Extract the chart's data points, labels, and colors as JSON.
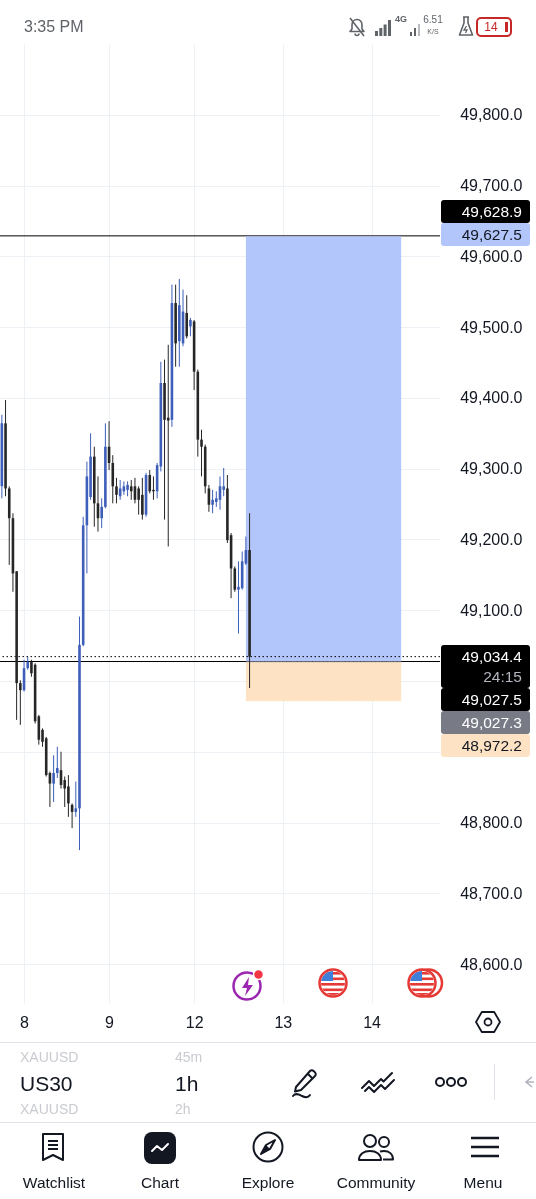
{
  "chart_data": {
    "type": "candlestick",
    "title": "US30",
    "subtitle": "1h",
    "categories": [
      null,
      null,
      null,
      null,
      null,
      null,
      "8",
      null,
      null,
      null,
      null,
      null,
      null,
      null,
      null,
      null,
      null,
      null,
      null,
      null,
      null,
      null,
      null,
      null,
      null,
      null,
      null,
      null,
      null,
      "9",
      null,
      null,
      null,
      null,
      null,
      null,
      null,
      null,
      null,
      null,
      null,
      null,
      null,
      null,
      null,
      null,
      null,
      null,
      null,
      null,
      null,
      null,
      "12",
      null,
      null,
      null,
      null,
      null,
      null,
      null,
      null,
      null,
      null,
      null,
      null,
      null,
      null,
      null,
      null,
      null,
      null,
      null,
      null,
      null,
      null,
      null,
      "13",
      null,
      null,
      null,
      null,
      null,
      null,
      null,
      null,
      null,
      null,
      null,
      null,
      null,
      null,
      null,
      null,
      null,
      null,
      null,
      null,
      null,
      null,
      null,
      "14",
      null,
      null,
      null,
      null,
      null,
      null,
      null,
      null,
      null,
      null,
      null,
      null,
      null,
      null,
      null,
      null,
      null,
      null
    ],
    "ohlc": [
      [
        49275,
        49376,
        49258,
        49364
      ],
      [
        49364,
        49397,
        49261,
        49272
      ],
      [
        49272,
        49275,
        49164,
        49230
      ],
      [
        49230,
        49237,
        49126,
        49152
      ],
      [
        49155,
        49155,
        48945,
        48997
      ],
      [
        48997,
        49001,
        48938,
        48987
      ],
      [
        48987,
        49030,
        48985,
        49018
      ],
      [
        49018,
        49034,
        49016,
        49027
      ],
      [
        49027,
        49030,
        49006,
        49011
      ],
      [
        49023,
        49025,
        48940,
        48943
      ],
      [
        48950,
        48952,
        48910,
        48917
      ],
      [
        48931,
        48933,
        48907,
        48914
      ],
      [
        48919,
        48921,
        48865,
        48867
      ],
      [
        48870,
        48872,
        48822,
        48855
      ],
      [
        48855,
        48895,
        48829,
        48870
      ],
      [
        48870,
        48907,
        48863,
        48877
      ],
      [
        48874,
        48900,
        48848,
        48853
      ],
      [
        48860,
        48865,
        48822,
        48848
      ],
      [
        48851,
        48867,
        48808,
        48827
      ],
      [
        48825,
        48827,
        48792,
        48815
      ],
      [
        48815,
        48858,
        48808,
        48820
      ],
      [
        48820,
        49091,
        48761,
        49051
      ],
      [
        49051,
        49232,
        49049,
        49220
      ],
      [
        49220,
        49310,
        49152,
        49289
      ],
      [
        49260,
        49350,
        49256,
        49317
      ],
      [
        49317,
        49331,
        49218,
        49251
      ],
      [
        49251,
        49289,
        49211,
        49230
      ],
      [
        49230,
        49258,
        49216,
        49246
      ],
      [
        49246,
        49364,
        49244,
        49331
      ],
      [
        49331,
        49367,
        49298,
        49308
      ],
      [
        49308,
        49319,
        49251,
        49275
      ],
      [
        49275,
        49287,
        49251,
        49263
      ],
      [
        49261,
        49284,
        49256,
        49272
      ],
      [
        49268,
        49282,
        49263,
        49275
      ],
      [
        49270,
        49282,
        49261,
        49277
      ],
      [
        49275,
        49284,
        49256,
        49268
      ],
      [
        49275,
        49287,
        49251,
        49256
      ],
      [
        49272,
        49275,
        49235,
        49256
      ],
      [
        49263,
        49287,
        49228,
        49235
      ],
      [
        49235,
        49294,
        49232,
        49291
      ],
      [
        49291,
        49298,
        49265,
        49268
      ],
      [
        49270,
        49289,
        49256,
        49268
      ],
      [
        49268,
        49308,
        49258,
        49305
      ],
      [
        49303,
        49451,
        49296,
        49421
      ],
      [
        49421,
        49454,
        49228,
        49369
      ],
      [
        49372,
        49475,
        49190,
        49368
      ],
      [
        49369,
        49560,
        49359,
        49534
      ],
      [
        49534,
        49560,
        49444,
        49477
      ],
      [
        49480,
        49568,
        49444,
        49531
      ],
      [
        49477,
        49553,
        49473,
        49522
      ],
      [
        49520,
        49545,
        49484,
        49487
      ],
      [
        49501,
        49513,
        49487,
        49510
      ],
      [
        49508,
        49510,
        49411,
        49437
      ],
      [
        49437,
        49440,
        49317,
        49341
      ],
      [
        49341,
        49355,
        49289,
        49331
      ],
      [
        49331,
        49334,
        49265,
        49275
      ],
      [
        49272,
        49277,
        49239,
        49249
      ],
      [
        49249,
        49270,
        49237,
        49256
      ],
      [
        49253,
        49268,
        49246,
        49258
      ],
      [
        49256,
        49289,
        49242,
        49275
      ],
      [
        49270,
        49301,
        49261,
        49275
      ],
      [
        49272,
        49291,
        49195,
        49199
      ],
      [
        49206,
        49209,
        49117,
        49159
      ],
      [
        49159,
        49162,
        49126,
        49129
      ],
      [
        49129,
        49169,
        49067,
        49133
      ],
      [
        49131,
        49183,
        49129,
        49169
      ],
      [
        49166,
        49204,
        49164,
        49185
      ],
      [
        49185,
        49237,
        48990,
        49034.4
      ],
      null,
      null,
      null,
      null,
      null,
      null,
      null,
      null,
      null,
      null,
      null,
      null,
      null,
      null,
      null,
      null,
      null,
      null,
      null,
      null,
      null,
      null,
      null,
      null,
      null,
      null,
      null,
      null,
      null,
      null,
      null,
      null,
      null,
      null,
      null,
      null,
      null,
      null,
      null,
      null,
      null,
      null,
      null,
      null,
      null,
      null,
      null,
      null,
      null,
      null,
      null
    ],
    "colors": [
      "#3d5fba",
      "#262626",
      "#262626",
      "#262626",
      "#262626",
      "#262626",
      "#3d5fba",
      "#3d5fba",
      "#262626",
      "#262626",
      "#262626",
      "#262626",
      "#262626",
      "#262626",
      "#3d5fba",
      "#3d5fba",
      "#262626",
      "#262626",
      "#262626",
      "#262626",
      "#3d5fba",
      "#3d5fba",
      "#3d5fba",
      "#3d5fba",
      "#3d5fba",
      "#262626",
      "#262626",
      "#3d5fba",
      "#3d5fba",
      "#262626",
      "#262626",
      "#262626",
      "#3d5fba",
      "#3d5fba",
      "#3d5fba",
      "#262626",
      "#262626",
      "#262626",
      "#262626",
      "#3d5fba",
      "#262626",
      "#262626",
      "#3d5fba",
      "#3d5fba",
      "#262626",
      "#262626",
      "#3d5fba",
      "#262626",
      "#3d5fba",
      "#3d5fba",
      "#262626",
      "#3d5fba",
      "#262626",
      "#262626",
      "#262626",
      "#262626",
      "#262626",
      "#3d5fba",
      "#3d5fba",
      "#3d5fba",
      "#3d5fba",
      "#262626",
      "#262626",
      "#262626",
      "#3d5fba",
      "#3d5fba",
      "#3d5fba",
      "#262626",
      null,
      null,
      null,
      null,
      null,
      null,
      null,
      null,
      null,
      null,
      null,
      null,
      null,
      null,
      null,
      null,
      null,
      null,
      null,
      null,
      null,
      null,
      null,
      null,
      null,
      null,
      null,
      null,
      null,
      null,
      null,
      null,
      null,
      null,
      null,
      null,
      null,
      null,
      null,
      null,
      null,
      null,
      null,
      null,
      null,
      null,
      null,
      null,
      null,
      null,
      null
    ],
    "series": [
      {
        "type": "line",
        "color": "#b3c6fb",
        "values": [
          null,
          null,
          null,
          null,
          null,
          null,
          null,
          null,
          null,
          null,
          null,
          null,
          null,
          null,
          null,
          null,
          null,
          null,
          null,
          null,
          null,
          null,
          null,
          null,
          null,
          null,
          null,
          null,
          null,
          null,
          null,
          null,
          null,
          null,
          null,
          null,
          null,
          null,
          null,
          null,
          null,
          null,
          null,
          null,
          null,
          null,
          null,
          null,
          null,
          null,
          null,
          null,
          null,
          null,
          null,
          null,
          null,
          null,
          null,
          null,
          null,
          null,
          null,
          null,
          null,
          null,
          49627.5,
          49627.5,
          49627.5,
          49627.5,
          49627.5,
          49627.5,
          49627.5,
          49627.5,
          49627.5,
          49627.5,
          49627.5,
          49627.5,
          49627.5,
          49627.5,
          49627.5,
          49627.5,
          49627.5,
          49627.5,
          49627.5,
          49627.5,
          49627.5,
          49627.5,
          49627.5,
          49627.5,
          49627.5,
          49627.5,
          49627.5,
          49627.5,
          49627.5,
          49627.5,
          49627.5,
          49627.5,
          49627.5,
          49627.5,
          49627.5,
          49627.5,
          49627.5,
          49627.5,
          49627.5,
          49627.5,
          49627.5,
          49627.5,
          49627.5,
          null,
          null,
          null,
          null,
          null,
          null,
          null,
          null,
          null,
          null
        ],
        "lower": [
          null,
          null,
          null,
          null,
          null,
          null,
          null,
          null,
          null,
          null,
          null,
          null,
          null,
          null,
          null,
          null,
          null,
          null,
          null,
          null,
          null,
          null,
          null,
          null,
          null,
          null,
          null,
          null,
          null,
          null,
          null,
          null,
          null,
          null,
          null,
          null,
          null,
          null,
          null,
          null,
          null,
          null,
          null,
          null,
          null,
          null,
          null,
          null,
          null,
          null,
          null,
          null,
          null,
          null,
          null,
          null,
          null,
          null,
          null,
          null,
          null,
          null,
          null,
          null,
          null,
          null,
          49027.3,
          49027.3,
          49027.3,
          49027.3,
          49027.3,
          49027.3,
          49027.3,
          49027.3,
          49027.3,
          49027.3,
          49027.3,
          49027.3,
          49027.3,
          49027.3,
          49027.3,
          49027.3,
          49027.3,
          49027.3,
          49027.3,
          49027.3,
          49027.3,
          49027.3,
          49027.3,
          49027.3,
          49027.3,
          49027.3,
          49027.3,
          49027.3,
          49027.3,
          49027.3,
          49027.3,
          49027.3,
          49027.3,
          49027.3,
          49027.3,
          49027.3,
          49027.3,
          49027.3,
          49027.3,
          49027.3,
          49027.3,
          49027.3,
          49027.3,
          null,
          null,
          null,
          null,
          null,
          null,
          null,
          null,
          null,
          null
        ],
        "upper": [
          null,
          null,
          null,
          null,
          null,
          null,
          null,
          null,
          null,
          null,
          null,
          null,
          null,
          null,
          null,
          null,
          null,
          null,
          null,
          null,
          null,
          null,
          null,
          null,
          null,
          null,
          null,
          null,
          null,
          null,
          null,
          null,
          null,
          null,
          null,
          null,
          null,
          null,
          null,
          null,
          null,
          null,
          null,
          null,
          null,
          null,
          null,
          null,
          null,
          null,
          null,
          null,
          null,
          null,
          null,
          null,
          null,
          null,
          null,
          null,
          null,
          null,
          null,
          null,
          null,
          null,
          49627.5,
          49627.5,
          49627.5,
          49627.5,
          49627.5,
          49627.5,
          49627.5,
          49627.5,
          49627.5,
          49627.5,
          49627.5,
          49627.5,
          49627.5,
          49627.5,
          49627.5,
          49627.5,
          49627.5,
          49627.5,
          49627.5,
          49627.5,
          49627.5,
          49627.5,
          49627.5,
          49627.5,
          49627.5,
          49627.5,
          49627.5,
          49627.5,
          49627.5,
          49627.5,
          49627.5,
          49627.5,
          49627.5,
          49627.5,
          49627.5,
          49627.5,
          49627.5,
          49627.5,
          49627.5,
          49627.5,
          49627.5,
          49627.5,
          49627.5,
          null,
          null,
          null,
          null,
          null,
          null,
          null,
          null,
          null,
          null
        ]
      },
      {
        "type": "line",
        "color": "#fde3c3",
        "values": [
          null,
          null,
          null,
          null,
          null,
          null,
          null,
          null,
          null,
          null,
          null,
          null,
          null,
          null,
          null,
          null,
          null,
          null,
          null,
          null,
          null,
          null,
          null,
          null,
          null,
          null,
          null,
          null,
          null,
          null,
          null,
          null,
          null,
          null,
          null,
          null,
          null,
          null,
          null,
          null,
          null,
          null,
          null,
          null,
          null,
          null,
          null,
          null,
          null,
          null,
          null,
          null,
          null,
          null,
          null,
          null,
          null,
          null,
          null,
          null,
          null,
          null,
          null,
          null,
          null,
          null,
          48972.2,
          48972.2,
          48972.2,
          48972.2,
          48972.2,
          48972.2,
          48972.2,
          48972.2,
          48972.2,
          48972.2,
          48972.2,
          48972.2,
          48972.2,
          48972.2,
          48972.2,
          48972.2,
          48972.2,
          48972.2,
          48972.2,
          48972.2,
          48972.2,
          48972.2,
          48972.2,
          48972.2,
          48972.2,
          48972.2,
          48972.2,
          48972.2,
          48972.2,
          48972.2,
          48972.2,
          48972.2,
          48972.2,
          48972.2,
          48972.2,
          48972.2,
          48972.2,
          48972.2,
          48972.2,
          48972.2,
          48972.2,
          48972.2,
          48972.2,
          null,
          null,
          null,
          null,
          null,
          null,
          null,
          null,
          null,
          null
        ],
        "lower": [
          null,
          null,
          null,
          null,
          null,
          null,
          null,
          null,
          null,
          null,
          null,
          null,
          null,
          null,
          null,
          null,
          null,
          null,
          null,
          null,
          null,
          null,
          null,
          null,
          null,
          null,
          null,
          null,
          null,
          null,
          null,
          null,
          null,
          null,
          null,
          null,
          null,
          null,
          null,
          null,
          null,
          null,
          null,
          null,
          null,
          null,
          null,
          null,
          null,
          null,
          null,
          null,
          null,
          null,
          null,
          null,
          null,
          null,
          null,
          null,
          null,
          null,
          null,
          null,
          null,
          null,
          48972.2,
          48972.2,
          48972.2,
          48972.2,
          48972.2,
          48972.2,
          48972.2,
          48972.2,
          48972.2,
          48972.2,
          48972.2,
          48972.2,
          48972.2,
          48972.2,
          48972.2,
          48972.2,
          48972.2,
          48972.2,
          48972.2,
          48972.2,
          48972.2,
          48972.2,
          48972.2,
          48972.2,
          48972.2,
          48972.2,
          48972.2,
          48972.2,
          48972.2,
          48972.2,
          48972.2,
          48972.2,
          48972.2,
          48972.2,
          48972.2,
          48972.2,
          48972.2,
          48972.2,
          48972.2,
          48972.2,
          48972.2,
          48972.2,
          48972.2,
          null,
          null,
          null,
          null,
          null,
          null,
          null,
          null,
          null,
          null
        ],
        "upper": [
          null,
          null,
          null,
          null,
          null,
          null,
          null,
          null,
          null,
          null,
          null,
          null,
          null,
          null,
          null,
          null,
          null,
          null,
          null,
          null,
          null,
          null,
          null,
          null,
          null,
          null,
          null,
          null,
          null,
          null,
          null,
          null,
          null,
          null,
          null,
          null,
          null,
          null,
          null,
          null,
          null,
          null,
          null,
          null,
          null,
          null,
          null,
          null,
          null,
          null,
          null,
          null,
          null,
          null,
          null,
          null,
          null,
          null,
          null,
          null,
          null,
          null,
          null,
          null,
          null,
          null,
          49027.3,
          49027.3,
          49027.3,
          49027.3,
          49027.3,
          49027.3,
          49027.3,
          49027.3,
          49027.3,
          49027.3,
          49027.3,
          49027.3,
          49027.3,
          49027.3,
          49027.3,
          49027.3,
          49027.3,
          49027.3,
          49027.3,
          49027.3,
          49027.3,
          49027.3,
          49027.3,
          49027.3,
          49027.3,
          49027.3,
          49027.3,
          49027.3,
          49027.3,
          49027.3,
          49027.3,
          49027.3,
          49027.3,
          49027.3,
          49027.3,
          49027.3,
          49027.3,
          49027.3,
          49027.3,
          49027.3,
          49027.3,
          49027.3,
          49027.3,
          null,
          null,
          null,
          null,
          null,
          null,
          null,
          null,
          null,
          null
        ]
      },
      {
        "type": "line",
        "color": "#787b86",
        "values": [
          null,
          null,
          null,
          null,
          null,
          null,
          null,
          null,
          null,
          null,
          null,
          null,
          null,
          null,
          null,
          null,
          null,
          null,
          null,
          null,
          null,
          null,
          null,
          null,
          null,
          null,
          null,
          null,
          null,
          null,
          null,
          null,
          null,
          null,
          null,
          null,
          null,
          null,
          null,
          null,
          null,
          null,
          null,
          null,
          null,
          null,
          null,
          null,
          null,
          null,
          null,
          null,
          null,
          null,
          null,
          null,
          null,
          null,
          null,
          null,
          null,
          null,
          null,
          null,
          null,
          null,
          49027.3,
          49027.3,
          49027.3,
          49027.3,
          49027.3,
          49027.3,
          49027.3,
          49027.3,
          49027.3,
          49027.3,
          49027.3,
          49027.3,
          49027.3,
          49027.3,
          49027.3,
          49027.3,
          49027.3,
          49027.3,
          49027.3,
          49027.3,
          49027.3,
          49027.3,
          49027.3,
          49027.3,
          49027.3,
          49027.3,
          49027.3,
          49027.3,
          49027.3,
          49027.3,
          49027.3,
          49027.3,
          49027.3,
          49027.3,
          49027.3,
          49027.3,
          49027.3,
          49027.3,
          49027.3,
          49027.3,
          49027.3,
          49027.3,
          49027.3,
          null,
          null,
          null,
          null,
          null,
          null,
          null,
          null,
          null,
          null
        ]
      }
    ],
    "ylim": [
      48545,
      49900
    ],
    "yticks": [
      {
        "value": 48600,
        "label": "48,600.0"
      },
      {
        "value": 48700,
        "label": "48,700.0"
      },
      {
        "value": 48800,
        "label": "48,800.0"
      },
      {
        "value": 48900,
        "label": null
      },
      {
        "value": 49000,
        "label": null
      },
      {
        "value": 49100,
        "label": "49,100.0"
      },
      {
        "value": 49200,
        "label": "49,200.0"
      },
      {
        "value": 49300,
        "label": "49,300.0"
      },
      {
        "value": 49400,
        "label": "49,400.0"
      },
      {
        "value": 49500,
        "label": "49,500.0"
      },
      {
        "value": 49600,
        "label": "49,600.0"
      },
      {
        "value": 49700,
        "label": "49,700.0"
      },
      {
        "value": 49800,
        "label": "49,800.0"
      }
    ],
    "grid": true,
    "ref_lines": [
      {
        "axis": "y",
        "value": 49628.9,
        "label": "49,628.9",
        "color": "#000000"
      },
      {
        "axis": "y",
        "value": 49034.4,
        "label": "49,034.4",
        "color": "#000000",
        "line_style": "dotted"
      },
      {
        "axis": "y",
        "value": 49027.5,
        "label": "49,027.5",
        "color": "#000000"
      }
    ],
    "annotations": [
      "3:35 PM",
      "4G",
      "6.51",
      "K/S",
      "14",
      "24:15",
      "49,627.5",
      "49,027.3",
      "48,972.2",
      "XAUUSD",
      "45m",
      "XAUUSD",
      "2h",
      "Watchlist",
      "Chart",
      "Explore",
      "Community",
      "Menu"
    ]
  }
}
